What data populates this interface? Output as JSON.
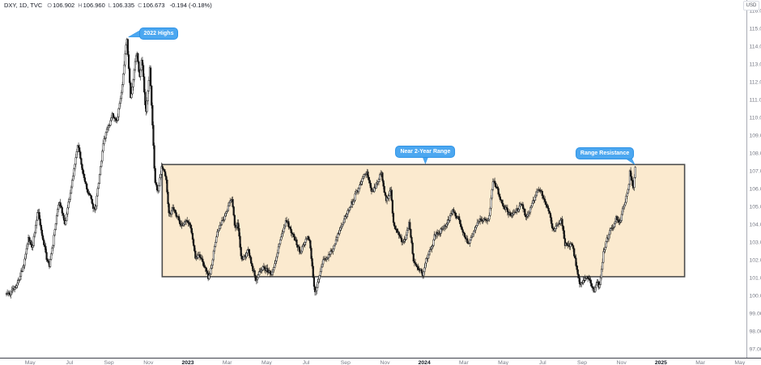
{
  "header": {
    "symbol": "DXY, 1D, TVC",
    "ohlc": {
      "o_label": "O",
      "o_value": "106.902",
      "h_label": "H",
      "h_value": "106.960",
      "l_label": "L",
      "l_value": "106.335",
      "c_label": "C",
      "c_value": "106.673"
    },
    "change": "-0.194 (-0.18%)"
  },
  "price_axis": {
    "currency": "USD"
  },
  "colors": {
    "candle": "#161616",
    "up_body": "#ffffff",
    "box_fill": "#fbeacf",
    "box_stroke": "#4c4c4c",
    "callout_blue": "#4ca7f0",
    "callout_border": "#2e93e6",
    "axis_text": "#787b86",
    "year_text": "#131722",
    "right_axis_line": "#a9acb5",
    "bottom_axis_line": "#3e424c"
  },
  "chart_data": {
    "type": "candlestick",
    "symbol": "DXY",
    "timeframe": "1D",
    "exchange": "TVC",
    "ylabel": "USD",
    "ylim": [
      97,
      116
    ],
    "grid": "off",
    "y_ticks": [
      116,
      115,
      114,
      113,
      112,
      111,
      110,
      109,
      108,
      107,
      106,
      105,
      104,
      103,
      102,
      101,
      100,
      99,
      98,
      97
    ],
    "x_axis_note": "m = months since 2023-01-01 (negative = 2022)",
    "x_ticks": [
      {
        "label": "May",
        "m": -8
      },
      {
        "label": "Jul",
        "m": -6
      },
      {
        "label": "Sep",
        "m": -4
      },
      {
        "label": "Nov",
        "m": -2
      },
      {
        "label": "2023",
        "m": 0,
        "bold": true
      },
      {
        "label": "Mar",
        "m": 2
      },
      {
        "label": "May",
        "m": 4
      },
      {
        "label": "Jul",
        "m": 6
      },
      {
        "label": "Sep",
        "m": 8
      },
      {
        "label": "Nov",
        "m": 10
      },
      {
        "label": "2024",
        "m": 12,
        "bold": true
      },
      {
        "label": "Mar",
        "m": 14
      },
      {
        "label": "May",
        "m": 16
      },
      {
        "label": "Jul",
        "m": 18
      },
      {
        "label": "Sep",
        "m": 20
      },
      {
        "label": "Nov",
        "m": 22
      },
      {
        "label": "2025",
        "m": 24,
        "bold": true
      },
      {
        "label": "Mar",
        "m": 26
      },
      {
        "label": "May",
        "m": 28
      }
    ],
    "price_path_note": "anchor points [m, price] tracing the DXY daily close path shown",
    "price_path_monthly": [
      [
        -9.2,
        100.0
      ],
      [
        -8.9,
        100.3
      ],
      [
        -8.55,
        100.8
      ],
      [
        -8.3,
        101.6
      ],
      [
        -8.1,
        103.0
      ],
      [
        -7.87,
        102.7
      ],
      [
        -7.6,
        104.8
      ],
      [
        -7.37,
        103.1
      ],
      [
        -7.03,
        101.6
      ],
      [
        -6.7,
        104.0
      ],
      [
        -6.53,
        105.4
      ],
      [
        -6.23,
        104.1
      ],
      [
        -5.77,
        107.0
      ],
      [
        -5.57,
        108.5
      ],
      [
        -5.3,
        106.6
      ],
      [
        -4.97,
        105.7
      ],
      [
        -4.7,
        104.8
      ],
      [
        -4.27,
        108.8
      ],
      [
        -3.83,
        110.2
      ],
      [
        -3.6,
        109.6
      ],
      [
        -3.33,
        111.5
      ],
      [
        -3.1,
        114.6
      ],
      [
        -2.9,
        111.0
      ],
      [
        -2.6,
        113.6
      ],
      [
        -2.43,
        112.1
      ],
      [
        -2.33,
        113.4
      ],
      [
        -2.13,
        110.0
      ],
      [
        -1.93,
        112.7
      ],
      [
        -1.67,
        106.5
      ],
      [
        -1.53,
        105.6
      ],
      [
        -1.33,
        107.3
      ],
      [
        -1.1,
        106.4
      ],
      [
        -0.97,
        104.6
      ],
      [
        -0.73,
        104.9
      ],
      [
        -0.53,
        104.5
      ],
      [
        -0.37,
        103.9
      ],
      [
        -0.1,
        104.4
      ],
      [
        0.17,
        103.7
      ],
      [
        0.37,
        102.2
      ],
      [
        0.57,
        102.3
      ],
      [
        0.83,
        101.7
      ],
      [
        1.03,
        100.9
      ],
      [
        1.43,
        103.2
      ],
      [
        1.87,
        104.6
      ],
      [
        2.23,
        105.6
      ],
      [
        2.4,
        103.6
      ],
      [
        2.53,
        104.0
      ],
      [
        2.73,
        102.1
      ],
      [
        3.07,
        102.4
      ],
      [
        3.43,
        100.9
      ],
      [
        3.83,
        101.6
      ],
      [
        4.23,
        101.3
      ],
      [
        5.0,
        104.2
      ],
      [
        5.37,
        103.2
      ],
      [
        5.7,
        102.4
      ],
      [
        5.97,
        103.3
      ],
      [
        6.17,
        103.0
      ],
      [
        6.43,
        100.0
      ],
      [
        6.87,
        101.8
      ],
      [
        7.3,
        102.5
      ],
      [
        7.8,
        104.1
      ],
      [
        8.13,
        104.8
      ],
      [
        8.43,
        105.3
      ],
      [
        9.07,
        107.2
      ],
      [
        9.33,
        105.8
      ],
      [
        9.83,
        106.6
      ],
      [
        10.07,
        105.2
      ],
      [
        10.3,
        105.9
      ],
      [
        10.43,
        104.1
      ],
      [
        10.93,
        102.9
      ],
      [
        11.23,
        103.9
      ],
      [
        11.43,
        102.0
      ],
      [
        11.9,
        101.3
      ],
      [
        12.53,
        103.4
      ],
      [
        13.03,
        103.9
      ],
      [
        13.43,
        104.9
      ],
      [
        14.23,
        102.8
      ],
      [
        14.67,
        104.1
      ],
      [
        15.27,
        104.2
      ],
      [
        15.5,
        106.5
      ],
      [
        16.07,
        105.0
      ],
      [
        16.47,
        104.3
      ],
      [
        16.93,
        105.1
      ],
      [
        17.17,
        104.2
      ],
      [
        17.83,
        106.0
      ],
      [
        18.23,
        105.0
      ],
      [
        18.53,
        103.7
      ],
      [
        18.97,
        104.4
      ],
      [
        19.13,
        102.8
      ],
      [
        19.47,
        103.1
      ],
      [
        19.87,
        100.6
      ],
      [
        20.17,
        101.2
      ],
      [
        20.4,
        101.0
      ],
      [
        20.6,
        100.5
      ],
      [
        20.8,
        101.0
      ],
      [
        20.87,
        100.4
      ],
      [
        21.1,
        102.5
      ],
      [
        21.53,
        103.8
      ],
      [
        21.73,
        104.4
      ],
      [
        21.93,
        104.2
      ],
      [
        22.17,
        105.2
      ],
      [
        22.37,
        106.0
      ],
      [
        22.43,
        106.8
      ],
      [
        22.6,
        106.1
      ],
      [
        22.7,
        107.2
      ]
    ],
    "candles": {
      "count": 690,
      "color": "#161616",
      "close_noise": 0.3,
      "wick_noise": 0.18
    },
    "range_box": {
      "m_from": -1.3,
      "m_to": 25.2,
      "price_top": 107.35,
      "price_bottom": 101.05,
      "fill": "#fbeacf",
      "stroke": "#4c4c4c"
    },
    "annotations": [
      {
        "text": "2022 Highs",
        "target_m": -3.1,
        "target_p": 114.6,
        "placement": "right"
      },
      {
        "text": "Near 2-Year Range",
        "target_m": 12.05,
        "target_p": 107.35,
        "placement": "above"
      },
      {
        "text": "Range Resistance",
        "target_m": 22.72,
        "target_p": 107.25,
        "placement": "above-left"
      }
    ],
    "last_values": {
      "open": 106.902,
      "high": 106.96,
      "low": 106.335,
      "close": 106.673,
      "change": -0.194,
      "change_pct": -0.18
    }
  }
}
